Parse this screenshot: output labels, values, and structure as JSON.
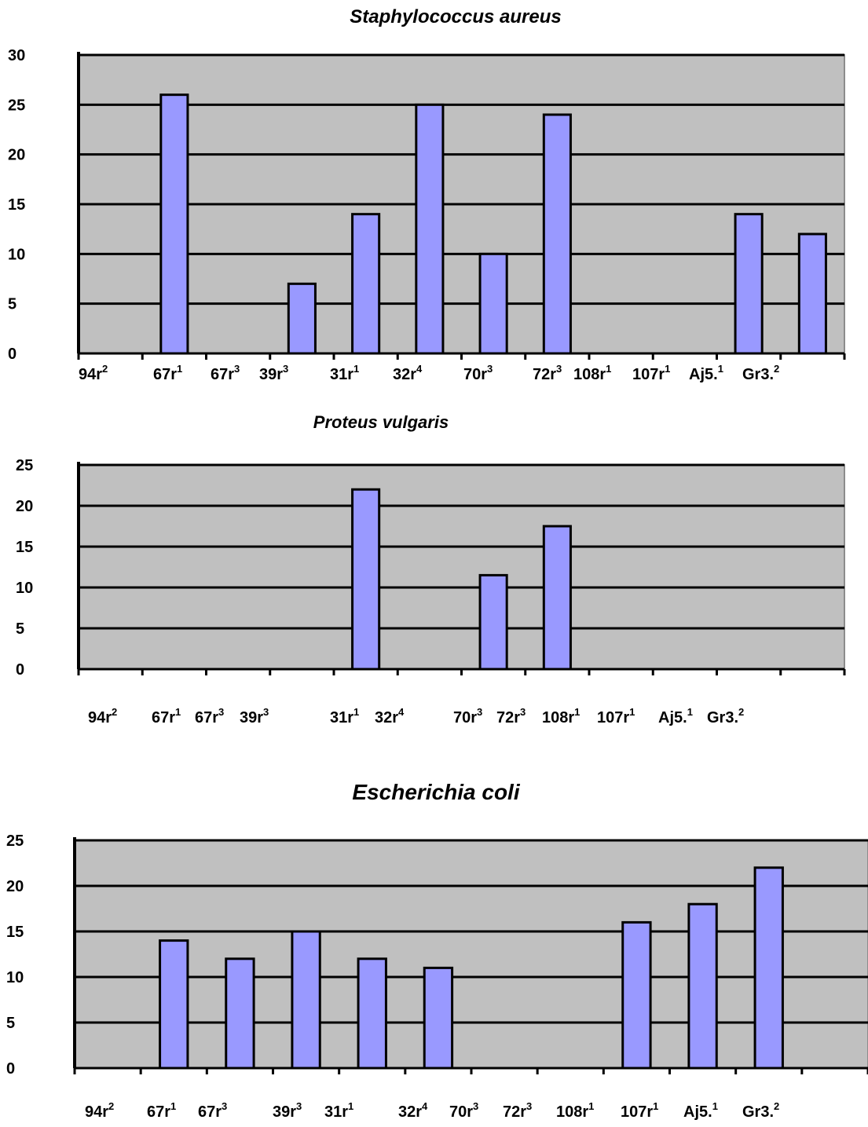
{
  "chart_data": [
    {
      "type": "bar",
      "title": "Staphylococcus aureus",
      "ylim": [
        0,
        30
      ],
      "yticks": [
        0,
        5,
        10,
        15,
        20,
        25,
        30
      ],
      "grid": true,
      "tick_labels": [
        {
          "base": "94r",
          "sup": "2"
        },
        {
          "base": "67r",
          "sup": "1"
        },
        {
          "base": "67r",
          "sup": "3"
        },
        {
          "base": "39r",
          "sup": "3"
        },
        {
          "base": "31r",
          "sup": "1"
        },
        {
          "base": "32r",
          "sup": "4"
        },
        {
          "base": "70r",
          "sup": "3"
        },
        {
          "base": "72r",
          "sup": "3"
        },
        {
          "base": "108r",
          "sup": "1"
        },
        {
          "base": "107r",
          "sup": "1"
        },
        {
          "base": "Aj5.",
          "sup": "1"
        },
        {
          "base": "Gr3.",
          "sup": "2"
        }
      ],
      "values": [
        0,
        26,
        0,
        7,
        14,
        25,
        10,
        24,
        0,
        0,
        14,
        12
      ],
      "colors": {
        "bar": "#9999ff",
        "plot_bg": "#c0c0c0",
        "grid": "#000000"
      }
    },
    {
      "type": "bar",
      "title": "Proteus vulgaris",
      "ylim": [
        0,
        25
      ],
      "yticks": [
        0,
        5,
        10,
        15,
        20,
        25
      ],
      "grid": true,
      "tick_labels": [
        {
          "base": "94r",
          "sup": "2"
        },
        {
          "base": "67r",
          "sup": "1"
        },
        {
          "base": "67r",
          "sup": "3"
        },
        {
          "base": "39r",
          "sup": "3"
        },
        {
          "base": "31r",
          "sup": "1"
        },
        {
          "base": "32r",
          "sup": "4"
        },
        {
          "base": "70r",
          "sup": "3"
        },
        {
          "base": "72r",
          "sup": "3"
        },
        {
          "base": "108r",
          "sup": "1"
        },
        {
          "base": "107r",
          "sup": "1"
        },
        {
          "base": "Aj5.",
          "sup": "1"
        },
        {
          "base": "Gr3.",
          "sup": "2"
        }
      ],
      "values": [
        0,
        0,
        0,
        0,
        22,
        0,
        11.5,
        17.5,
        0,
        0,
        0,
        0
      ],
      "colors": {
        "bar": "#9999ff",
        "plot_bg": "#c0c0c0",
        "grid": "#000000"
      }
    },
    {
      "type": "bar",
      "title": "Escherichia coli",
      "ylim": [
        0,
        25
      ],
      "yticks": [
        0,
        5,
        10,
        15,
        20,
        25
      ],
      "grid": true,
      "tick_labels": [
        {
          "base": "94r",
          "sup": "2"
        },
        {
          "base": "67r",
          "sup": "1"
        },
        {
          "base": "67r",
          "sup": "3"
        },
        {
          "base": "39r",
          "sup": "3"
        },
        {
          "base": "31r",
          "sup": "1"
        },
        {
          "base": "32r",
          "sup": "4"
        },
        {
          "base": "70r",
          "sup": "3"
        },
        {
          "base": "72r",
          "sup": "3"
        },
        {
          "base": "108r",
          "sup": "1"
        },
        {
          "base": "107r",
          "sup": "1"
        },
        {
          "base": "Aj5.",
          "sup": "1"
        },
        {
          "base": "Gr3.",
          "sup": "2"
        }
      ],
      "values": [
        0,
        14,
        12,
        15,
        12,
        11,
        0,
        0,
        16,
        18,
        22,
        0
      ],
      "colors": {
        "bar": "#9999ff",
        "plot_bg": "#c0c0c0",
        "grid": "#000000"
      }
    }
  ]
}
